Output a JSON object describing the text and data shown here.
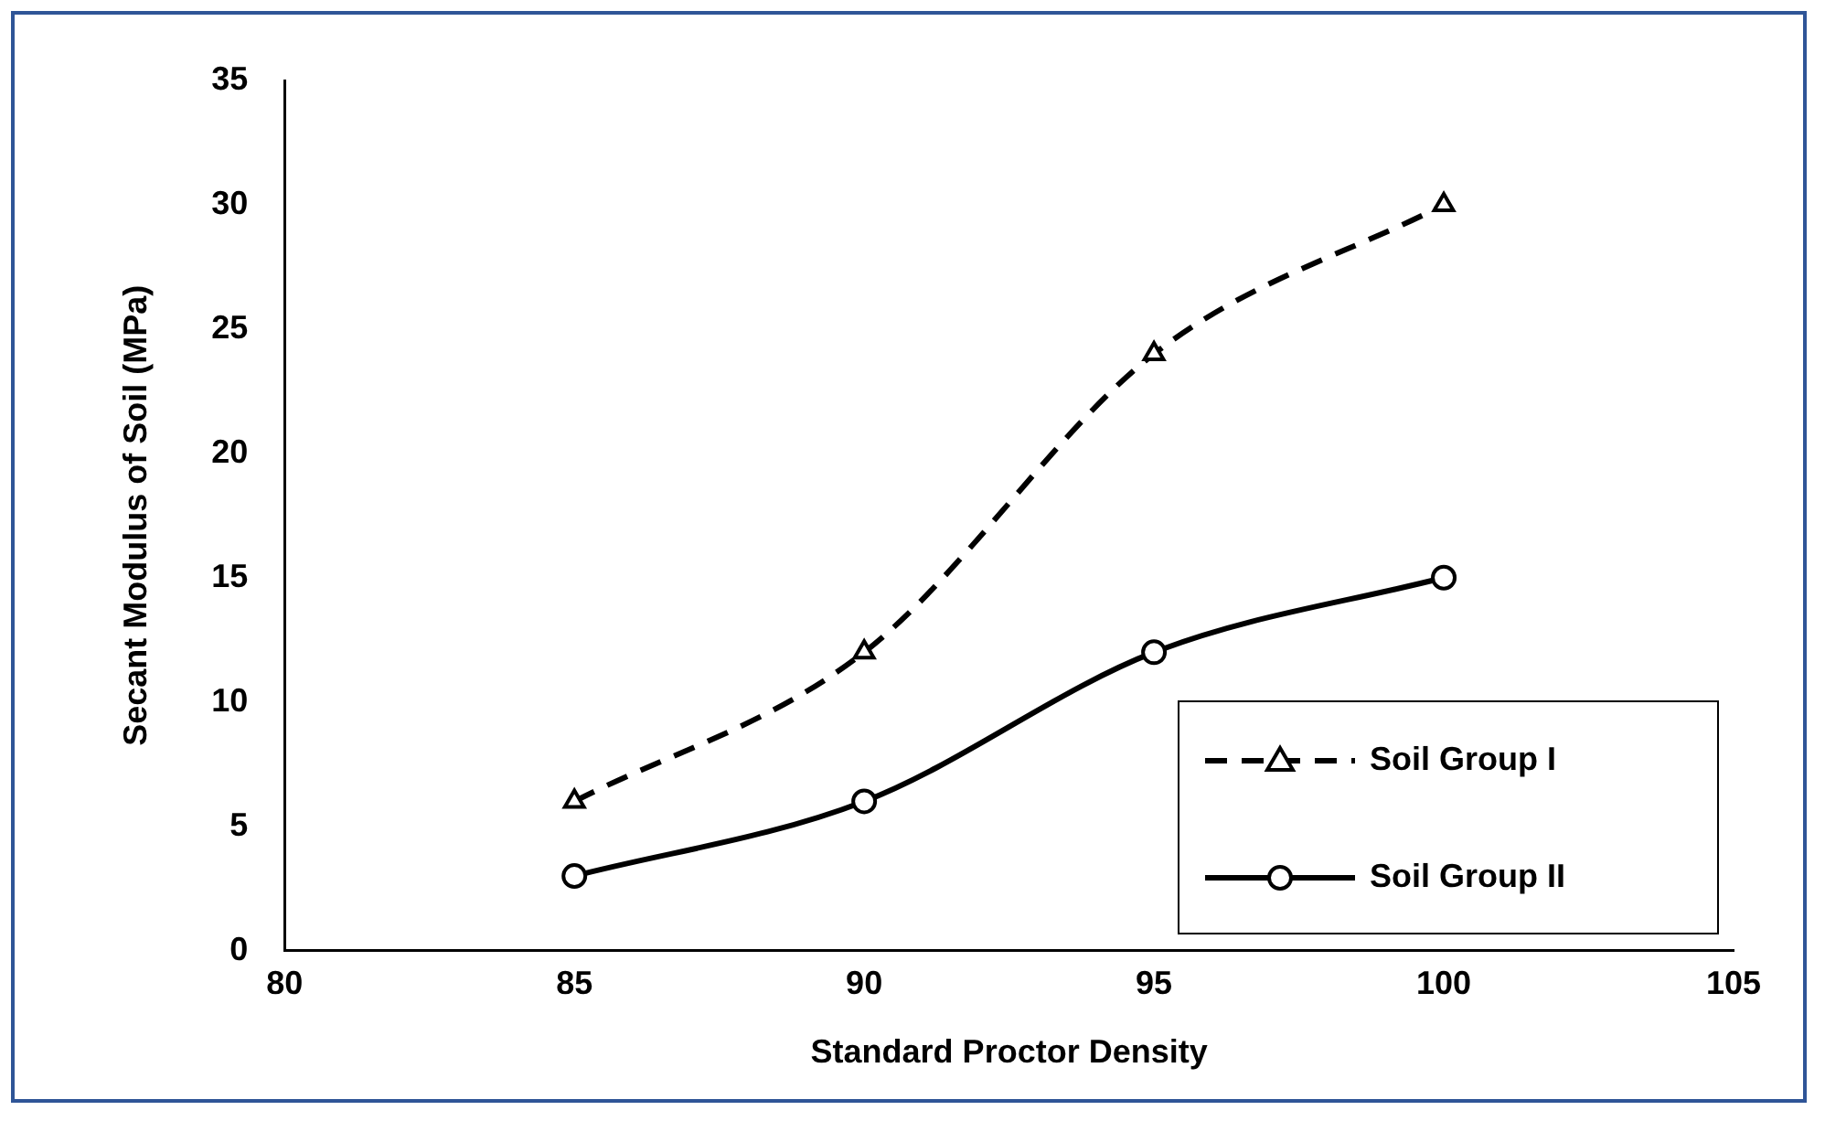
{
  "chart_data": {
    "type": "line",
    "xlabel": "Standard Proctor Density",
    "ylabel": "Secant Modulus of Soil (MPa)",
    "x": [
      85,
      90,
      95,
      100
    ],
    "series": [
      {
        "name": "Soil Group I",
        "color": "#000000",
        "values": [
          6,
          12,
          24,
          30
        ],
        "marker": "triangle",
        "line_style": "dashed"
      },
      {
        "name": "Soil Group II",
        "color": "#000000",
        "values": [
          3,
          6,
          12,
          15
        ],
        "marker": "circle",
        "line_style": "solid"
      }
    ],
    "xlim": [
      80,
      105
    ],
    "xticks": [
      80,
      85,
      90,
      95,
      100,
      105
    ],
    "ylim": [
      0,
      35
    ],
    "yticks": [
      0,
      5,
      10,
      15,
      20,
      25,
      30,
      35
    ],
    "grid": false,
    "legend": "bottom right"
  }
}
